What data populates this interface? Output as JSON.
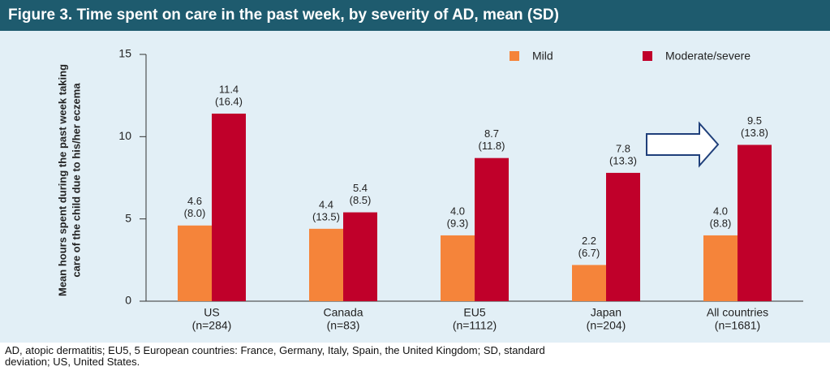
{
  "chart_data": {
    "type": "bar",
    "title": "Figure 3. Time spent on care in the past week, by severity of AD, mean (SD)",
    "y_label": [
      "Mean hours spent during the past week taking",
      "care of the child due to his/her eczema"
    ],
    "categories": [
      "US",
      "Canada",
      "EU5",
      "Japan",
      "All countries"
    ],
    "category_sublabels": [
      "(n=284)",
      "(n=83)",
      "(n=1112)",
      "(n=204)",
      "(n=1681)"
    ],
    "series": [
      {
        "name": "Mild",
        "color": "#f5843a",
        "values": [
          4.6,
          4.4,
          4,
          2.2,
          4
        ],
        "value_labels": [
          "4.6",
          "4.4",
          "4.0",
          "2.2",
          "4.0"
        ],
        "sd_labels": [
          "(8.0)",
          "(13.5)",
          "(9.3)",
          "(6.7)",
          "(8.8)"
        ]
      },
      {
        "name": "Moderate/severe",
        "color": "#c0002a",
        "values": [
          11.4,
          5.4,
          8.7,
          7.8,
          9.5
        ],
        "value_labels": [
          "11.4",
          "5.4",
          "8.7",
          "7.8",
          "9.5"
        ],
        "sd_labels": [
          "(16.4)",
          "(8.5)",
          "(11.8)",
          "(13.3)",
          "(13.8)"
        ]
      }
    ],
    "ylim": [
      0,
      15
    ],
    "yticks": [
      0,
      5,
      10,
      15
    ],
    "legend": "top-right"
  },
  "footnote": [
    "AD, atopic dermatitis; EU5, 5 European countries: France, Germany, Italy, Spain, the United Kingdom; SD, standard",
    "deviation; US, United States."
  ]
}
